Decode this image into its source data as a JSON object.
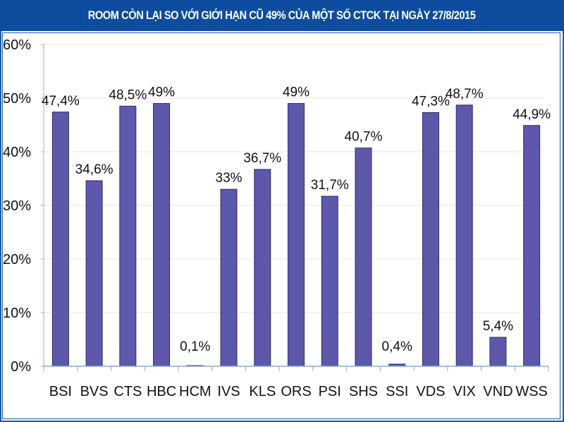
{
  "colors": {
    "title_bg": "#0e4c9f",
    "bar_fill": "#5d58aa",
    "bar_edge": "#2e2a6e",
    "axis": "#8aa8d6",
    "grid": "#e6e6e6",
    "border": "#1f5aa8"
  },
  "chart_data": {
    "type": "bar",
    "title": "ROOM CÒN LẠI SO VỚI GIỚI HẠN CŨ 49% CỦA MỘT SỐ CTCK TẠI NGÀY 27/8/2015",
    "xlabel": "",
    "ylabel": "",
    "ylim": [
      0,
      60
    ],
    "yticks": [
      0,
      10,
      20,
      30,
      40,
      50,
      60
    ],
    "ytick_labels": [
      "0%",
      "10%",
      "20%",
      "30%",
      "40%",
      "50%",
      "60%"
    ],
    "grid": true,
    "legend": "none",
    "categories": [
      "BSI",
      "BVS",
      "CTS",
      "HBC",
      "HCM",
      "IVS",
      "KLS",
      "ORS",
      "PSI",
      "SHS",
      "SSI",
      "VDS",
      "VIX",
      "VND",
      "WSS"
    ],
    "values": [
      47.4,
      34.6,
      48.5,
      49,
      0.1,
      33,
      36.7,
      49,
      31.7,
      40.7,
      0.4,
      47.3,
      48.7,
      5.4,
      44.9
    ],
    "data_labels": [
      "47,4%",
      "34,6%",
      "48,5%",
      "49%",
      "0,1%",
      "33%",
      "36,7%",
      "49%",
      "31,7%",
      "40,7%",
      "0,4%",
      "47,3%",
      "48,7%",
      "5,4%",
      "44,9%"
    ]
  }
}
